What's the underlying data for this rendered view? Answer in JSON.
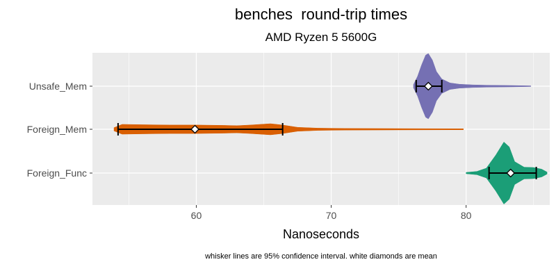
{
  "chart_data": {
    "type": "violin",
    "title": "benches  round-trip times",
    "subtitle": "AMD Ryzen 5 5600G",
    "xlabel": "Nanoseconds",
    "ylabel": "",
    "caption": "whisker lines are 95% confidence interval. white diamonds are mean",
    "xlim": [
      52.3,
      86.2
    ],
    "xticks": [
      60,
      70,
      80
    ],
    "grid": true,
    "legend": "none",
    "categories": [
      "Unsafe_Mem",
      "Foreign_Mem",
      "Foreign_Func"
    ],
    "series": [
      {
        "name": "Unsafe_Mem",
        "color": "#7570b3",
        "min": 76.1,
        "max": 84.8,
        "mean": 77.2,
        "ci_low": 76.3,
        "ci_high": 78.2,
        "density": [
          [
            76.1,
            0.05
          ],
          [
            76.4,
            0.3
          ],
          [
            76.7,
            0.65
          ],
          [
            77.0,
            0.95
          ],
          [
            77.2,
            1.0
          ],
          [
            77.5,
            0.8
          ],
          [
            77.8,
            0.45
          ],
          [
            78.2,
            0.22
          ],
          [
            78.8,
            0.1
          ],
          [
            79.5,
            0.06
          ],
          [
            80.5,
            0.04
          ],
          [
            81.5,
            0.03
          ],
          [
            82.5,
            0.025
          ],
          [
            83.5,
            0.02
          ],
          [
            84.8,
            0.01
          ]
        ]
      },
      {
        "name": "Foreign_Mem",
        "color": "#d95f02",
        "min": 53.9,
        "max": 79.8,
        "mean": 59.9,
        "ci_low": 54.2,
        "ci_high": 66.4,
        "density": [
          [
            53.9,
            0.05
          ],
          [
            54.5,
            0.15
          ],
          [
            56,
            0.14
          ],
          [
            58,
            0.13
          ],
          [
            60,
            0.13
          ],
          [
            62,
            0.12
          ],
          [
            63,
            0.11
          ],
          [
            64,
            0.13
          ],
          [
            65.5,
            0.17
          ],
          [
            66.4,
            0.13
          ],
          [
            67.5,
            0.06
          ],
          [
            69,
            0.035
          ],
          [
            71,
            0.025
          ],
          [
            75,
            0.02
          ],
          [
            79.8,
            0.015
          ]
        ]
      },
      {
        "name": "Foreign_Func",
        "color": "#1b9e77",
        "min": 80.0,
        "max": 86.0,
        "mean": 83.3,
        "ci_low": 81.7,
        "ci_high": 85.2,
        "density": [
          [
            80.0,
            0.02
          ],
          [
            80.8,
            0.05
          ],
          [
            81.5,
            0.15
          ],
          [
            82.2,
            0.55
          ],
          [
            82.8,
            0.95
          ],
          [
            83.2,
            0.8
          ],
          [
            83.6,
            0.35
          ],
          [
            84.3,
            0.18
          ],
          [
            85.0,
            0.17
          ],
          [
            85.6,
            0.12
          ],
          [
            86.0,
            0.03
          ]
        ]
      }
    ]
  }
}
